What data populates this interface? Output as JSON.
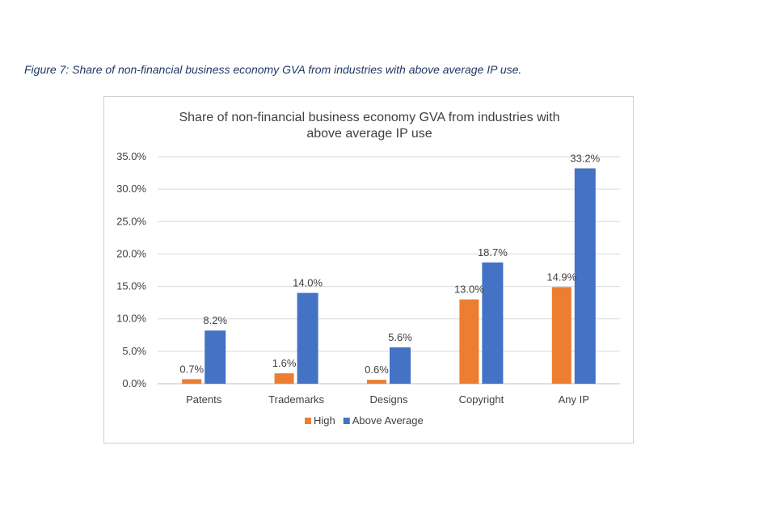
{
  "caption": "Figure 7: Share of non-financial business economy GVA from industries with above average IP use.",
  "chart_data": {
    "type": "bar",
    "title_lines": [
      "Share of non-financial business economy GVA from industries with",
      "above average IP use"
    ],
    "categories": [
      "Patents",
      "Trademarks",
      "Designs",
      "Copyright",
      "Any IP"
    ],
    "series": [
      {
        "name": "High",
        "color": "#ed7d31",
        "values": [
          0.7,
          1.6,
          0.6,
          13.0,
          14.9
        ],
        "labels": [
          "0.7%",
          "1.6%",
          "0.6%",
          "13.0%",
          "14.9%"
        ]
      },
      {
        "name": "Above Average",
        "color": "#4472c4",
        "values": [
          8.2,
          14.0,
          5.6,
          18.7,
          33.2
        ],
        "labels": [
          "8.2%",
          "14.0%",
          "5.6%",
          "18.7%",
          "33.2%"
        ]
      }
    ],
    "y_ticks": [
      "0.0%",
      "5.0%",
      "10.0%",
      "15.0%",
      "20.0%",
      "25.0%",
      "30.0%",
      "35.0%"
    ],
    "ylim": [
      0,
      35
    ],
    "grid": true,
    "legend_position": "bottom"
  }
}
